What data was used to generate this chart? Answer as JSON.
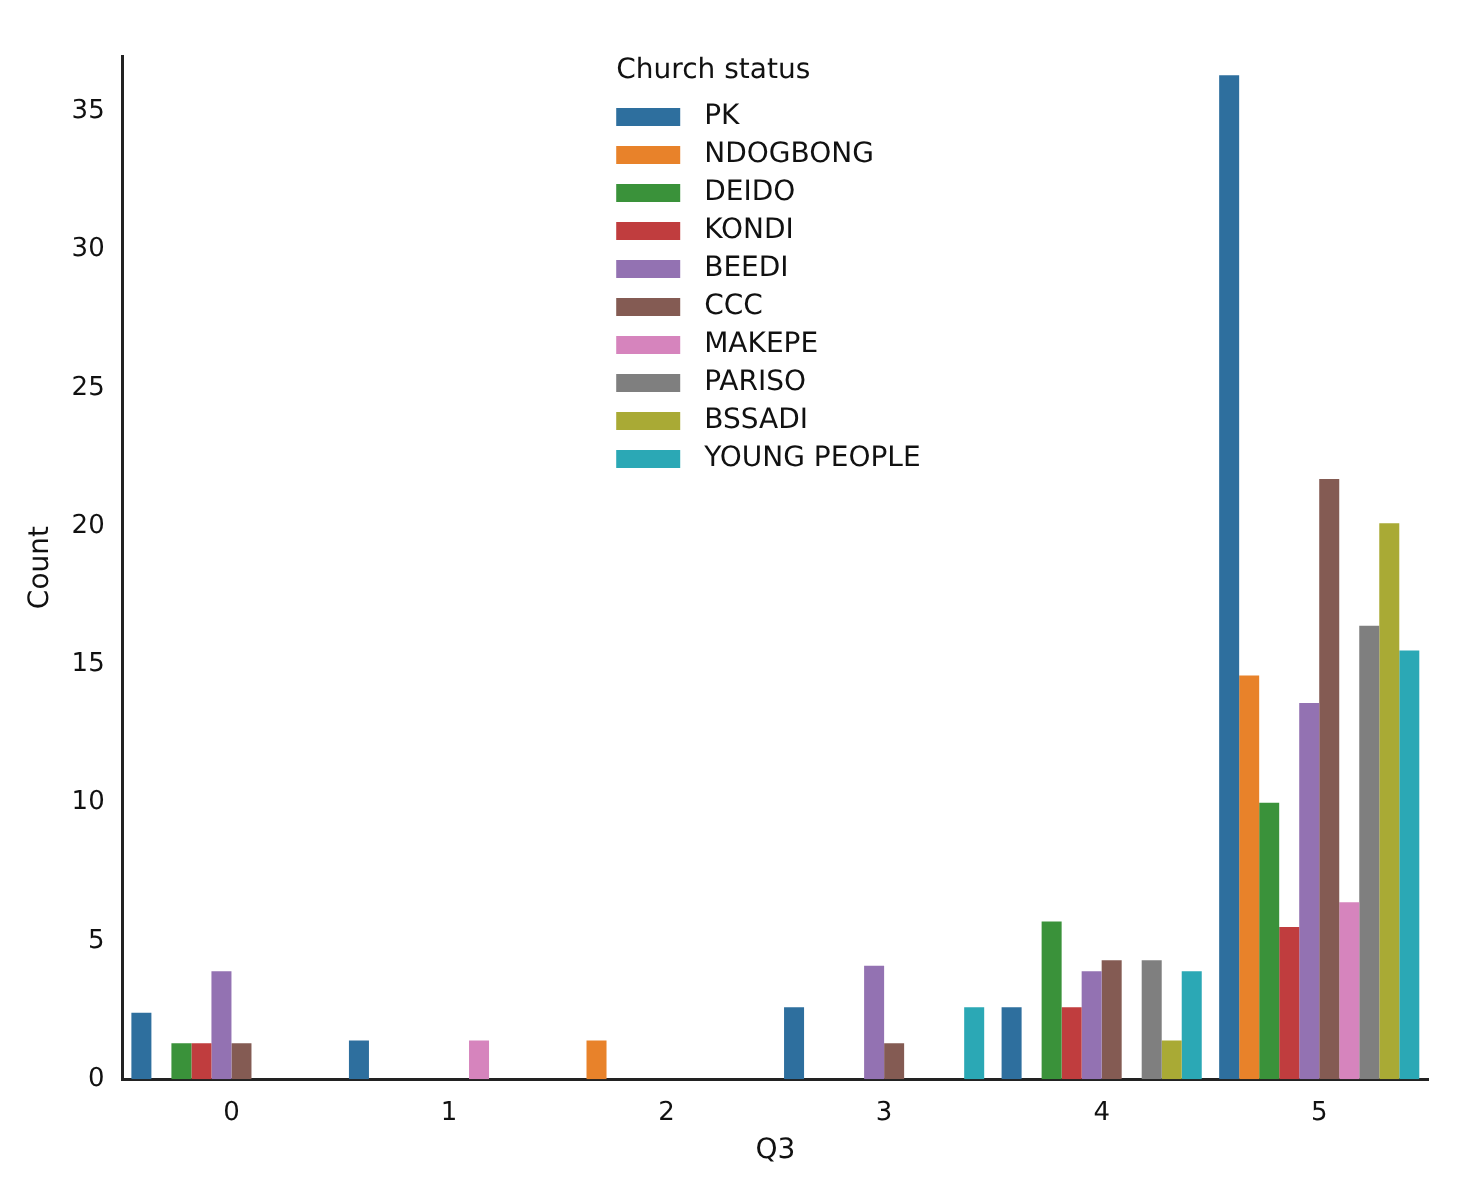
{
  "chart_data": {
    "type": "bar",
    "xlabel": "Q3",
    "ylabel": "Count",
    "legend_title": "Church status",
    "legend": "top",
    "grid": false,
    "categories": [
      "0",
      "1",
      "2",
      "3",
      "4",
      "5"
    ],
    "ylim": [
      0,
      37
    ],
    "yticks": [
      0,
      5,
      10,
      15,
      20,
      25,
      30,
      35
    ],
    "series": [
      {
        "name": "PK",
        "color": "#2e6f9e",
        "values": [
          2.4,
          1.4,
          null,
          2.6,
          2.6,
          36.3
        ]
      },
      {
        "name": "NDOGBONG",
        "color": "#e8822a",
        "values": [
          null,
          null,
          1.4,
          null,
          null,
          14.6
        ]
      },
      {
        "name": "DEIDO",
        "color": "#3a923a",
        "values": [
          1.3,
          null,
          null,
          null,
          5.7,
          10
        ]
      },
      {
        "name": "KONDI",
        "color": "#c03d3e",
        "values": [
          1.3,
          null,
          null,
          null,
          2.6,
          5.5
        ]
      },
      {
        "name": "BEEDI",
        "color": "#9372b2",
        "values": [
          3.9,
          null,
          null,
          4.1,
          3.9,
          13.6
        ]
      },
      {
        "name": "CCC",
        "color": "#845b53",
        "values": [
          1.3,
          null,
          null,
          1.3,
          4.3,
          21.7
        ]
      },
      {
        "name": "MAKEPE",
        "color": "#d684bd",
        "values": [
          null,
          1.4,
          null,
          null,
          null,
          6.4
        ]
      },
      {
        "name": "PARISO",
        "color": "#7f7f7f",
        "values": [
          null,
          null,
          null,
          null,
          4.3,
          16.4
        ]
      },
      {
        "name": "BSSADI",
        "color": "#a9aa35",
        "values": [
          null,
          null,
          null,
          null,
          1.4,
          20.1
        ]
      },
      {
        "name": "YOUNG PEOPLE",
        "color": "#2ba8b5",
        "values": [
          null,
          null,
          null,
          2.6,
          3.9,
          15.5
        ]
      }
    ]
  }
}
